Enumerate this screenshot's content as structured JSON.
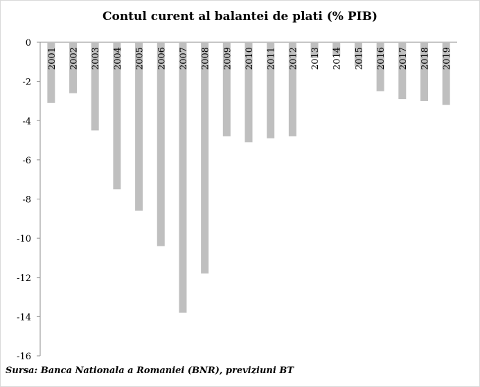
{
  "chart_data": {
    "type": "bar",
    "title": "Contul curent al balantei de plati (% PIB)",
    "categories": [
      "2001",
      "2002",
      "2003",
      "2004",
      "2005",
      "2006",
      "2007",
      "2008",
      "2009",
      "2010",
      "2011",
      "2012",
      "2013",
      "2014",
      "2015",
      "2016",
      "2017",
      "2018",
      "2019"
    ],
    "values": [
      -3.1,
      -2.6,
      -4.5,
      -7.5,
      -8.6,
      -10.4,
      -13.8,
      -11.8,
      -4.8,
      -5.1,
      -4.9,
      -4.8,
      -0.8,
      -0.7,
      -1.2,
      -2.5,
      -2.9,
      -3.0,
      -3.2
    ],
    "y_ticks": [
      "0",
      "-2",
      "-4",
      "-6",
      "-8",
      "-10",
      "-12",
      "-14",
      "-16"
    ],
    "ylim": [
      -16,
      0
    ],
    "xlabel": "",
    "ylabel": "",
    "grid": false,
    "bar_color": "#bfbfbf"
  },
  "source_note": "Sursa: Banca Nationala a Romaniei (BNR), previziuni BT"
}
